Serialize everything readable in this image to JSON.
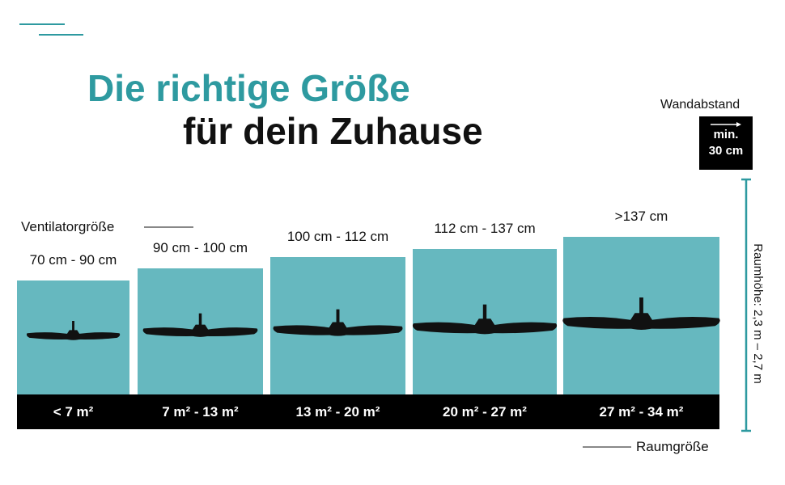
{
  "header": {
    "title_line1": "Die richtige Größe",
    "title_line2": "für dein Zuhause"
  },
  "fan_size_label": "Ventilatorgröße",
  "room_size_label": "Raumgröße",
  "wall_distance": {
    "label": "Wandabstand",
    "min": "min.",
    "value": "30 cm"
  },
  "room_height": "Raumhöhe: 2,3 m – 2,7 m",
  "items": [
    {
      "fan_size": "70 cm - 90 cm",
      "room_size": "< 7 m²"
    },
    {
      "fan_size": "90 cm - 100 cm",
      "room_size": "7 m² - 13 m²"
    },
    {
      "fan_size": "100 cm - 112 cm",
      "room_size": "13 m² - 20 m²"
    },
    {
      "fan_size": "112 cm - 137 cm",
      "room_size": "20 m² - 27 m²"
    },
    {
      "fan_size": ">137 cm",
      "room_size": "27 m² - 34 m²"
    }
  ]
}
